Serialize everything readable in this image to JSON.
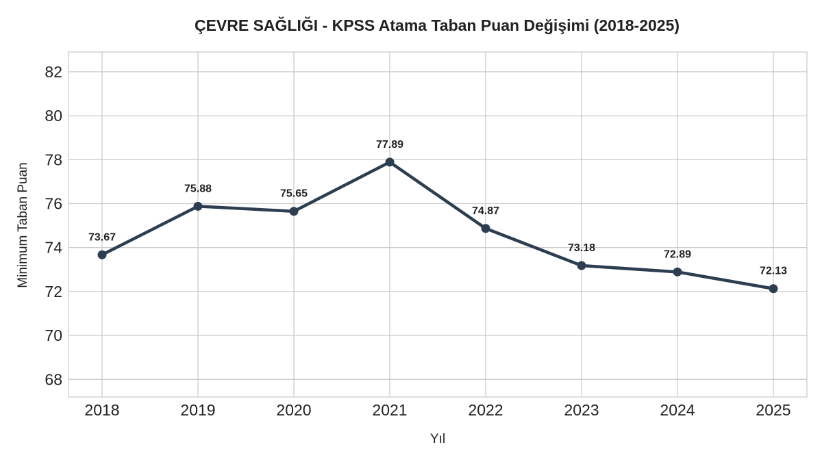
{
  "chart_data": {
    "type": "line",
    "title": "ÇEVRE SAĞLIĞI - KPSS Atama Taban Puan Değişimi (2018-2025)",
    "xlabel": "Yıl",
    "ylabel": "Minimum Taban Puan",
    "categories": [
      "2018",
      "2019",
      "2020",
      "2021",
      "2022",
      "2023",
      "2024",
      "2025"
    ],
    "series": [
      {
        "values": [
          73.67,
          75.88,
          75.65,
          77.89,
          74.87,
          73.18,
          72.89,
          72.13
        ],
        "color": "#2c3e50"
      }
    ],
    "data_labels": [
      "73.67",
      "75.88",
      "75.65",
      "77.89",
      "74.87",
      "73.18",
      "72.89",
      "72.13"
    ],
    "ylim": [
      67.2,
      82.9
    ],
    "yticks": [
      68,
      70,
      72,
      74,
      76,
      78,
      80,
      82
    ],
    "grid": true,
    "legend": "none"
  }
}
